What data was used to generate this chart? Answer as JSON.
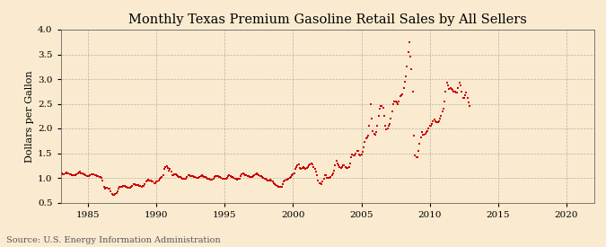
{
  "title": "Monthly Texas Premium Gasoline Retail Sales by All Sellers",
  "ylabel": "Dollars per Gallon",
  "source": "Source: U.S. Energy Information Administration",
  "bg_color": "#faebd0",
  "plot_bg_color": "#faebd0",
  "line_color": "#cc0000",
  "marker": "s",
  "marker_size": 2.0,
  "ylim": [
    0.5,
    4.0
  ],
  "yticks": [
    0.5,
    1.0,
    1.5,
    2.0,
    2.5,
    3.0,
    3.5,
    4.0
  ],
  "xlim_start": 1983,
  "xlim_end": 2022,
  "title_fontsize": 10.5,
  "label_fontsize": 8,
  "tick_fontsize": 7.5,
  "source_fontsize": 7,
  "data": [
    [
      1983,
      1,
      1.09
    ],
    [
      1983,
      2,
      1.09
    ],
    [
      1983,
      3,
      1.08
    ],
    [
      1983,
      4,
      1.08
    ],
    [
      1983,
      5,
      1.1
    ],
    [
      1983,
      6,
      1.11
    ],
    [
      1983,
      7,
      1.1
    ],
    [
      1983,
      8,
      1.09
    ],
    [
      1983,
      9,
      1.08
    ],
    [
      1983,
      10,
      1.07
    ],
    [
      1983,
      11,
      1.06
    ],
    [
      1983,
      12,
      1.06
    ],
    [
      1984,
      1,
      1.06
    ],
    [
      1984,
      2,
      1.06
    ],
    [
      1984,
      3,
      1.08
    ],
    [
      1984,
      4,
      1.09
    ],
    [
      1984,
      5,
      1.11
    ],
    [
      1984,
      6,
      1.12
    ],
    [
      1984,
      7,
      1.1
    ],
    [
      1984,
      8,
      1.09
    ],
    [
      1984,
      9,
      1.08
    ],
    [
      1984,
      10,
      1.07
    ],
    [
      1984,
      11,
      1.05
    ],
    [
      1984,
      12,
      1.04
    ],
    [
      1985,
      1,
      1.04
    ],
    [
      1985,
      2,
      1.03
    ],
    [
      1985,
      3,
      1.05
    ],
    [
      1985,
      4,
      1.07
    ],
    [
      1985,
      5,
      1.08
    ],
    [
      1985,
      6,
      1.08
    ],
    [
      1985,
      7,
      1.06
    ],
    [
      1985,
      8,
      1.05
    ],
    [
      1985,
      9,
      1.04
    ],
    [
      1985,
      10,
      1.03
    ],
    [
      1985,
      11,
      1.02
    ],
    [
      1985,
      12,
      1.01
    ],
    [
      1986,
      1,
      1.0
    ],
    [
      1986,
      2,
      0.95
    ],
    [
      1986,
      3,
      0.82
    ],
    [
      1986,
      4,
      0.78
    ],
    [
      1986,
      5,
      0.8
    ],
    [
      1986,
      6,
      0.8
    ],
    [
      1986,
      7,
      0.79
    ],
    [
      1986,
      8,
      0.78
    ],
    [
      1986,
      9,
      0.73
    ],
    [
      1986,
      10,
      0.68
    ],
    [
      1986,
      11,
      0.66
    ],
    [
      1986,
      12,
      0.65
    ],
    [
      1987,
      1,
      0.68
    ],
    [
      1987,
      2,
      0.7
    ],
    [
      1987,
      3,
      0.73
    ],
    [
      1987,
      4,
      0.78
    ],
    [
      1987,
      5,
      0.82
    ],
    [
      1987,
      6,
      0.82
    ],
    [
      1987,
      7,
      0.82
    ],
    [
      1987,
      8,
      0.84
    ],
    [
      1987,
      9,
      0.83
    ],
    [
      1987,
      10,
      0.82
    ],
    [
      1987,
      11,
      0.81
    ],
    [
      1987,
      12,
      0.8
    ],
    [
      1988,
      1,
      0.8
    ],
    [
      1988,
      2,
      0.8
    ],
    [
      1988,
      3,
      0.81
    ],
    [
      1988,
      4,
      0.84
    ],
    [
      1988,
      5,
      0.87
    ],
    [
      1988,
      6,
      0.87
    ],
    [
      1988,
      7,
      0.86
    ],
    [
      1988,
      8,
      0.86
    ],
    [
      1988,
      9,
      0.85
    ],
    [
      1988,
      10,
      0.84
    ],
    [
      1988,
      11,
      0.83
    ],
    [
      1988,
      12,
      0.82
    ],
    [
      1989,
      1,
      0.83
    ],
    [
      1989,
      2,
      0.84
    ],
    [
      1989,
      3,
      0.87
    ],
    [
      1989,
      4,
      0.92
    ],
    [
      1989,
      5,
      0.95
    ],
    [
      1989,
      6,
      0.96
    ],
    [
      1989,
      7,
      0.95
    ],
    [
      1989,
      8,
      0.94
    ],
    [
      1989,
      9,
      0.93
    ],
    [
      1989,
      10,
      0.92
    ],
    [
      1989,
      11,
      0.9
    ],
    [
      1989,
      12,
      0.89
    ],
    [
      1990,
      1,
      0.92
    ],
    [
      1990,
      2,
      0.93
    ],
    [
      1990,
      3,
      0.95
    ],
    [
      1990,
      4,
      0.98
    ],
    [
      1990,
      5,
      1.0
    ],
    [
      1990,
      6,
      1.02
    ],
    [
      1990,
      7,
      1.05
    ],
    [
      1990,
      8,
      1.18
    ],
    [
      1990,
      9,
      1.22
    ],
    [
      1990,
      10,
      1.24
    ],
    [
      1990,
      11,
      1.2
    ],
    [
      1990,
      12,
      1.15
    ],
    [
      1991,
      1,
      1.18
    ],
    [
      1991,
      2,
      1.12
    ],
    [
      1991,
      3,
      1.05
    ],
    [
      1991,
      4,
      1.06
    ],
    [
      1991,
      5,
      1.08
    ],
    [
      1991,
      6,
      1.07
    ],
    [
      1991,
      7,
      1.05
    ],
    [
      1991,
      8,
      1.03
    ],
    [
      1991,
      9,
      1.02
    ],
    [
      1991,
      10,
      1.01
    ],
    [
      1991,
      11,
      1.0
    ],
    [
      1991,
      12,
      0.99
    ],
    [
      1992,
      1,
      0.99
    ],
    [
      1992,
      2,
      0.98
    ],
    [
      1992,
      3,
      0.99
    ],
    [
      1992,
      4,
      1.02
    ],
    [
      1992,
      5,
      1.05
    ],
    [
      1992,
      6,
      1.05
    ],
    [
      1992,
      7,
      1.04
    ],
    [
      1992,
      8,
      1.04
    ],
    [
      1992,
      9,
      1.03
    ],
    [
      1992,
      10,
      1.02
    ],
    [
      1992,
      11,
      1.01
    ],
    [
      1992,
      12,
      1.0
    ],
    [
      1993,
      1,
      1.0
    ],
    [
      1993,
      2,
      1.0
    ],
    [
      1993,
      3,
      1.01
    ],
    [
      1993,
      4,
      1.03
    ],
    [
      1993,
      5,
      1.05
    ],
    [
      1993,
      6,
      1.04
    ],
    [
      1993,
      7,
      1.02
    ],
    [
      1993,
      8,
      1.01
    ],
    [
      1993,
      9,
      1.0
    ],
    [
      1993,
      10,
      0.99
    ],
    [
      1993,
      11,
      0.98
    ],
    [
      1993,
      12,
      0.97
    ],
    [
      1994,
      1,
      0.97
    ],
    [
      1994,
      2,
      0.97
    ],
    [
      1994,
      3,
      0.98
    ],
    [
      1994,
      4,
      1.01
    ],
    [
      1994,
      5,
      1.04
    ],
    [
      1994,
      6,
      1.04
    ],
    [
      1994,
      7,
      1.03
    ],
    [
      1994,
      8,
      1.02
    ],
    [
      1994,
      9,
      1.01
    ],
    [
      1994,
      10,
      1.0
    ],
    [
      1994,
      11,
      0.99
    ],
    [
      1994,
      12,
      0.98
    ],
    [
      1995,
      1,
      0.98
    ],
    [
      1995,
      2,
      0.99
    ],
    [
      1995,
      3,
      1.0
    ],
    [
      1995,
      4,
      1.03
    ],
    [
      1995,
      5,
      1.05
    ],
    [
      1995,
      6,
      1.04
    ],
    [
      1995,
      7,
      1.02
    ],
    [
      1995,
      8,
      1.01
    ],
    [
      1995,
      9,
      1.0
    ],
    [
      1995,
      10,
      0.99
    ],
    [
      1995,
      11,
      0.98
    ],
    [
      1995,
      12,
      0.97
    ],
    [
      1996,
      1,
      0.98
    ],
    [
      1996,
      2,
      0.99
    ],
    [
      1996,
      3,
      1.04
    ],
    [
      1996,
      4,
      1.08
    ],
    [
      1996,
      5,
      1.1
    ],
    [
      1996,
      6,
      1.08
    ],
    [
      1996,
      7,
      1.06
    ],
    [
      1996,
      8,
      1.05
    ],
    [
      1996,
      9,
      1.04
    ],
    [
      1996,
      10,
      1.03
    ],
    [
      1996,
      11,
      1.02
    ],
    [
      1996,
      12,
      1.02
    ],
    [
      1997,
      1,
      1.02
    ],
    [
      1997,
      2,
      1.03
    ],
    [
      1997,
      3,
      1.05
    ],
    [
      1997,
      4,
      1.07
    ],
    [
      1997,
      5,
      1.09
    ],
    [
      1997,
      6,
      1.07
    ],
    [
      1997,
      7,
      1.05
    ],
    [
      1997,
      8,
      1.04
    ],
    [
      1997,
      9,
      1.03
    ],
    [
      1997,
      10,
      1.01
    ],
    [
      1997,
      11,
      1.0
    ],
    [
      1997,
      12,
      0.99
    ],
    [
      1998,
      1,
      0.98
    ],
    [
      1998,
      2,
      0.96
    ],
    [
      1998,
      3,
      0.94
    ],
    [
      1998,
      4,
      0.94
    ],
    [
      1998,
      5,
      0.96
    ],
    [
      1998,
      6,
      0.95
    ],
    [
      1998,
      7,
      0.93
    ],
    [
      1998,
      8,
      0.9
    ],
    [
      1998,
      9,
      0.88
    ],
    [
      1998,
      10,
      0.86
    ],
    [
      1998,
      11,
      0.84
    ],
    [
      1998,
      12,
      0.82
    ],
    [
      1999,
      1,
      0.82
    ],
    [
      1999,
      2,
      0.81
    ],
    [
      1999,
      3,
      0.82
    ],
    [
      1999,
      4,
      0.88
    ],
    [
      1999,
      5,
      0.92
    ],
    [
      1999,
      6,
      0.95
    ],
    [
      1999,
      7,
      0.96
    ],
    [
      1999,
      8,
      0.97
    ],
    [
      1999,
      9,
      0.98
    ],
    [
      1999,
      10,
      1.0
    ],
    [
      1999,
      11,
      1.02
    ],
    [
      1999,
      12,
      1.05
    ],
    [
      2000,
      1,
      1.08
    ],
    [
      2000,
      2,
      1.1
    ],
    [
      2000,
      3,
      1.18
    ],
    [
      2000,
      4,
      1.22
    ],
    [
      2000,
      5,
      1.25
    ],
    [
      2000,
      6,
      1.28
    ],
    [
      2000,
      7,
      1.2
    ],
    [
      2000,
      8,
      1.18
    ],
    [
      2000,
      9,
      1.2
    ],
    [
      2000,
      10,
      1.22
    ],
    [
      2000,
      11,
      1.2
    ],
    [
      2000,
      12,
      1.18
    ],
    [
      2001,
      1,
      1.2
    ],
    [
      2001,
      2,
      1.22
    ],
    [
      2001,
      3,
      1.25
    ],
    [
      2001,
      4,
      1.28
    ],
    [
      2001,
      5,
      1.3
    ],
    [
      2001,
      6,
      1.28
    ],
    [
      2001,
      7,
      1.22
    ],
    [
      2001,
      8,
      1.18
    ],
    [
      2001,
      9,
      1.12
    ],
    [
      2001,
      10,
      1.05
    ],
    [
      2001,
      11,
      0.95
    ],
    [
      2001,
      12,
      0.9
    ],
    [
      2002,
      1,
      0.9
    ],
    [
      2002,
      2,
      0.88
    ],
    [
      2002,
      3,
      0.92
    ],
    [
      2002,
      4,
      0.98
    ],
    [
      2002,
      5,
      1.05
    ],
    [
      2002,
      6,
      1.05
    ],
    [
      2002,
      7,
      1.0
    ],
    [
      2002,
      8,
      1.0
    ],
    [
      2002,
      9,
      1.0
    ],
    [
      2002,
      10,
      1.02
    ],
    [
      2002,
      11,
      1.05
    ],
    [
      2002,
      12,
      1.1
    ],
    [
      2003,
      1,
      1.15
    ],
    [
      2003,
      2,
      1.25
    ],
    [
      2003,
      3,
      1.35
    ],
    [
      2003,
      4,
      1.3
    ],
    [
      2003,
      5,
      1.25
    ],
    [
      2003,
      6,
      1.22
    ],
    [
      2003,
      7,
      1.2
    ],
    [
      2003,
      8,
      1.22
    ],
    [
      2003,
      9,
      1.25
    ],
    [
      2003,
      10,
      1.25
    ],
    [
      2003,
      11,
      1.22
    ],
    [
      2003,
      12,
      1.2
    ],
    [
      2004,
      1,
      1.2
    ],
    [
      2004,
      2,
      1.22
    ],
    [
      2004,
      3,
      1.3
    ],
    [
      2004,
      4,
      1.42
    ],
    [
      2004,
      5,
      1.48
    ],
    [
      2004,
      6,
      1.45
    ],
    [
      2004,
      7,
      1.45
    ],
    [
      2004,
      8,
      1.5
    ],
    [
      2004,
      9,
      1.55
    ],
    [
      2004,
      10,
      1.55
    ],
    [
      2004,
      11,
      1.48
    ],
    [
      2004,
      12,
      1.45
    ],
    [
      2005,
      1,
      1.48
    ],
    [
      2005,
      2,
      1.52
    ],
    [
      2005,
      3,
      1.62
    ],
    [
      2005,
      4,
      1.72
    ],
    [
      2005,
      5,
      1.8
    ],
    [
      2005,
      6,
      1.82
    ],
    [
      2005,
      7,
      1.85
    ],
    [
      2005,
      8,
      2.05
    ],
    [
      2005,
      9,
      2.5
    ],
    [
      2005,
      10,
      2.2
    ],
    [
      2005,
      11,
      1.95
    ],
    [
      2005,
      12,
      1.9
    ],
    [
      2006,
      1,
      1.88
    ],
    [
      2006,
      2,
      1.92
    ],
    [
      2006,
      3,
      2.05
    ],
    [
      2006,
      4,
      2.25
    ],
    [
      2006,
      5,
      2.4
    ],
    [
      2006,
      6,
      2.45
    ],
    [
      2006,
      7,
      2.45
    ],
    [
      2006,
      8,
      2.42
    ],
    [
      2006,
      9,
      2.25
    ],
    [
      2006,
      10,
      2.05
    ],
    [
      2006,
      11,
      1.98
    ],
    [
      2006,
      12,
      2.0
    ],
    [
      2007,
      1,
      2.05
    ],
    [
      2007,
      2,
      2.1
    ],
    [
      2007,
      3,
      2.2
    ],
    [
      2007,
      4,
      2.35
    ],
    [
      2007,
      5,
      2.5
    ],
    [
      2007,
      6,
      2.55
    ],
    [
      2007,
      7,
      2.55
    ],
    [
      2007,
      8,
      2.52
    ],
    [
      2007,
      9,
      2.5
    ],
    [
      2007,
      10,
      2.55
    ],
    [
      2007,
      11,
      2.65
    ],
    [
      2007,
      12,
      2.68
    ],
    [
      2008,
      1,
      2.7
    ],
    [
      2008,
      2,
      2.82
    ],
    [
      2008,
      3,
      2.95
    ],
    [
      2008,
      4,
      3.05
    ],
    [
      2008,
      5,
      3.25
    ],
    [
      2008,
      6,
      3.55
    ],
    [
      2008,
      7,
      3.75
    ],
    [
      2008,
      8,
      3.45
    ],
    [
      2008,
      9,
      3.2
    ],
    [
      2008,
      10,
      2.75
    ],
    [
      2008,
      11,
      1.85
    ],
    [
      2008,
      12,
      1.45
    ],
    [
      2009,
      1,
      1.42
    ],
    [
      2009,
      2,
      1.42
    ],
    [
      2009,
      3,
      1.55
    ],
    [
      2009,
      4,
      1.7
    ],
    [
      2009,
      5,
      1.82
    ],
    [
      2009,
      6,
      1.92
    ],
    [
      2009,
      7,
      1.88
    ],
    [
      2009,
      8,
      1.88
    ],
    [
      2009,
      9,
      1.9
    ],
    [
      2009,
      10,
      1.92
    ],
    [
      2009,
      11,
      1.95
    ],
    [
      2009,
      12,
      2.0
    ],
    [
      2010,
      1,
      2.05
    ],
    [
      2010,
      2,
      2.05
    ],
    [
      2010,
      3,
      2.1
    ],
    [
      2010,
      4,
      2.15
    ],
    [
      2010,
      5,
      2.18
    ],
    [
      2010,
      6,
      2.15
    ],
    [
      2010,
      7,
      2.12
    ],
    [
      2010,
      8,
      2.12
    ],
    [
      2010,
      9,
      2.15
    ],
    [
      2010,
      10,
      2.2
    ],
    [
      2010,
      11,
      2.25
    ],
    [
      2010,
      12,
      2.35
    ],
    [
      2011,
      1,
      2.4
    ],
    [
      2011,
      2,
      2.55
    ],
    [
      2011,
      3,
      2.75
    ],
    [
      2011,
      4,
      2.92
    ],
    [
      2011,
      5,
      2.88
    ],
    [
      2011,
      6,
      2.8
    ],
    [
      2011,
      7,
      2.82
    ],
    [
      2011,
      8,
      2.8
    ],
    [
      2011,
      9,
      2.78
    ],
    [
      2011,
      10,
      2.75
    ],
    [
      2011,
      11,
      2.75
    ],
    [
      2011,
      12,
      2.72
    ],
    [
      2012,
      1,
      2.72
    ],
    [
      2012,
      2,
      2.82
    ],
    [
      2012,
      3,
      2.92
    ],
    [
      2012,
      4,
      2.88
    ],
    [
      2012,
      5,
      2.75
    ],
    [
      2012,
      6,
      2.62
    ],
    [
      2012,
      7,
      2.62
    ],
    [
      2012,
      8,
      2.68
    ],
    [
      2012,
      9,
      2.72
    ],
    [
      2012,
      10,
      2.62
    ],
    [
      2012,
      11,
      2.52
    ],
    [
      2012,
      12,
      2.45
    ]
  ]
}
